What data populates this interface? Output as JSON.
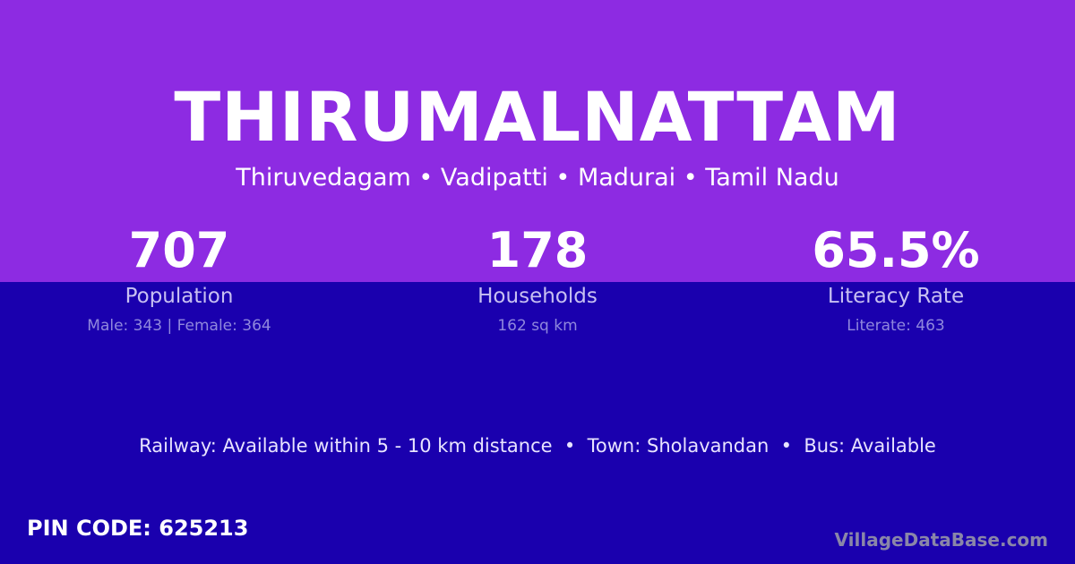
{
  "colors": {
    "top_background": "#8d2be2",
    "bottom_background": "#1a00ae"
  },
  "title": "THIRUMALNATTAM",
  "location": "Thiruvedagam • Vadipatti • Madurai • Tamil Nadu",
  "stats": [
    {
      "value": "707",
      "label": "Population",
      "detail": "Male: 343 | Female: 364"
    },
    {
      "value": "178",
      "label": "Households",
      "detail": "162 sq km"
    },
    {
      "value": "65.5%",
      "label": "Literacy Rate",
      "detail": "Literate: 463"
    }
  ],
  "transport": "Railway: Available within 5 - 10 km distance  •  Town: Sholavandan  •  Bus: Available",
  "pin_code": "PIN CODE: 625213",
  "brand": "VillageDataBase.com"
}
